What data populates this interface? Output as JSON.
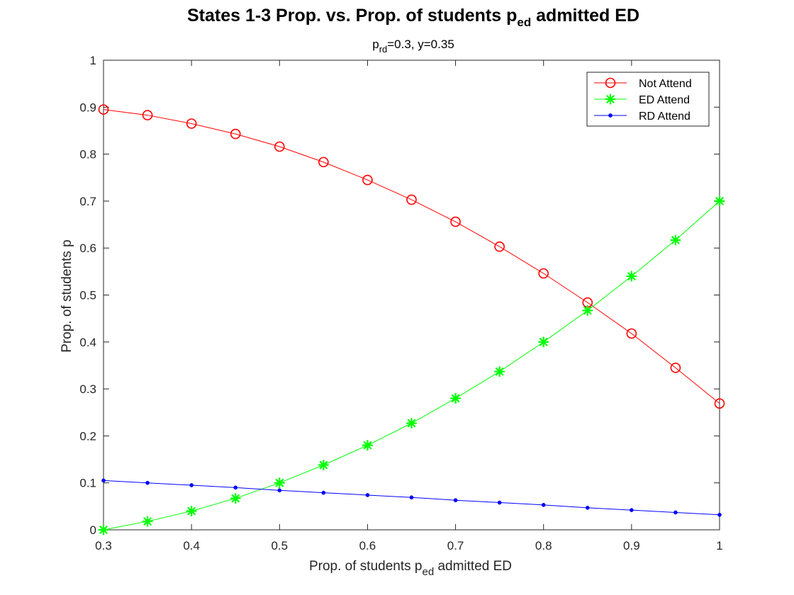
{
  "chart_data": {
    "type": "line",
    "title": {
      "pre": "States 1-3 Prop. vs. Prop. of students p",
      "sub": "ed",
      "post": " admitted ED"
    },
    "subtitle": {
      "pre": "p",
      "sub": "rd",
      "post": "=0.3, y=0.35"
    },
    "xlabel": {
      "pre": "Prop. of students p",
      "sub": "ed",
      "post": " admitted ED"
    },
    "ylabel": "Prop. of students p",
    "xlim": [
      0.3,
      1
    ],
    "ylim": [
      0,
      1
    ],
    "xticks": [
      0.3,
      0.4,
      0.5,
      0.6,
      0.7,
      0.8,
      0.9,
      1
    ],
    "xtick_labels": [
      "0.3",
      "0.4",
      "0.5",
      "0.6",
      "0.7",
      "0.8",
      "0.9",
      "1"
    ],
    "yticks": [
      0,
      0.1,
      0.2,
      0.3,
      0.4,
      0.5,
      0.6,
      0.7,
      0.8,
      0.9,
      1
    ],
    "ytick_labels": [
      "0",
      "0.1",
      "0.2",
      "0.3",
      "0.4",
      "0.5",
      "0.6",
      "0.7",
      "0.8",
      "0.9",
      "1"
    ],
    "grid": false,
    "legend_position": "top-right",
    "x": [
      0.3,
      0.35,
      0.4,
      0.45,
      0.5,
      0.55,
      0.6,
      0.65,
      0.7,
      0.75,
      0.8,
      0.85,
      0.9,
      0.95,
      1.0
    ],
    "series": [
      {
        "name": "Not Attend",
        "color": "#ff0000",
        "marker": "circle",
        "values": [
          0.895,
          0.883,
          0.865,
          0.843,
          0.816,
          0.783,
          0.745,
          0.703,
          0.656,
          0.603,
          0.546,
          0.484,
          0.418,
          0.345,
          0.269
        ]
      },
      {
        "name": "ED Attend",
        "color": "#00ff00",
        "marker": "asterisk",
        "values": [
          0.0,
          0.018,
          0.04,
          0.067,
          0.1,
          0.138,
          0.18,
          0.227,
          0.28,
          0.337,
          0.4,
          0.467,
          0.54,
          0.617,
          0.7
        ]
      },
      {
        "name": "RD Attend",
        "color": "#0000ff",
        "marker": "dot",
        "values": [
          0.105,
          0.1,
          0.095,
          0.09,
          0.084,
          0.079,
          0.074,
          0.069,
          0.063,
          0.058,
          0.053,
          0.047,
          0.042,
          0.037,
          0.032
        ]
      }
    ]
  }
}
